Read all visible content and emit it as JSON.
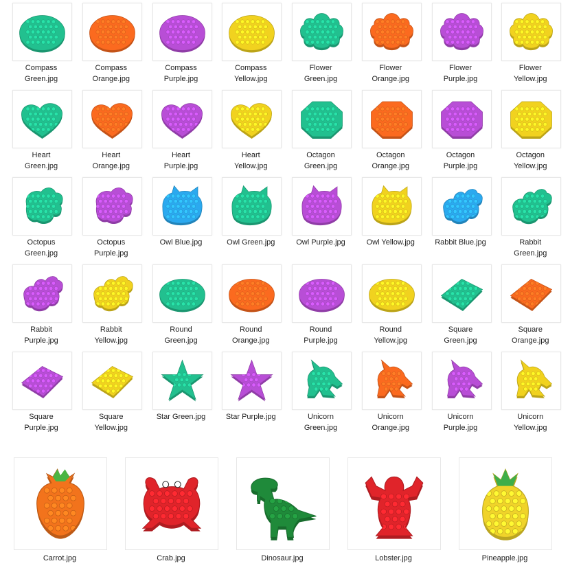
{
  "colors": {
    "Green": "#22c08f",
    "Orange": "#fb6a1f",
    "Purple": "#b84ed6",
    "Yellow": "#f1d21f",
    "Blue": "#2ba9ef",
    "Red": "#e0242a",
    "DarkGreen": "#1f8a3a",
    "CarrotOrange": "#f2731c",
    "PineappleYellow": "#f0d32a"
  },
  "thumbnails": [
    {
      "caption": "Compass\nGreen.jpg",
      "shape": "compass",
      "color": "Green"
    },
    {
      "caption": "Compass\nOrange.jpg",
      "shape": "compass",
      "color": "Orange"
    },
    {
      "caption": "Compass\nPurple.jpg",
      "shape": "compass",
      "color": "Purple"
    },
    {
      "caption": "Compass\nYellow.jpg",
      "shape": "compass",
      "color": "Yellow"
    },
    {
      "caption": "Flower\nGreen.jpg",
      "shape": "flower",
      "color": "Green"
    },
    {
      "caption": "Flower\nOrange.jpg",
      "shape": "flower",
      "color": "Orange"
    },
    {
      "caption": "Flower\nPurple.jpg",
      "shape": "flower",
      "color": "Purple"
    },
    {
      "caption": "Flower\nYellow.jpg",
      "shape": "flower",
      "color": "Yellow"
    },
    {
      "caption": "Heart\nGreen.jpg",
      "shape": "heart",
      "color": "Green"
    },
    {
      "caption": "Heart\nOrange.jpg",
      "shape": "heart",
      "color": "Orange"
    },
    {
      "caption": "Heart\nPurple.jpg",
      "shape": "heart",
      "color": "Purple"
    },
    {
      "caption": "Heart\nYellow.jpg",
      "shape": "heart",
      "color": "Yellow"
    },
    {
      "caption": "Octagon\nGreen.jpg",
      "shape": "octagon",
      "color": "Green"
    },
    {
      "caption": "Octagon\nOrange.jpg",
      "shape": "octagon",
      "color": "Orange"
    },
    {
      "caption": "Octagon\nPurple.jpg",
      "shape": "octagon",
      "color": "Purple"
    },
    {
      "caption": "Octagon\nYellow.jpg",
      "shape": "octagon",
      "color": "Yellow"
    },
    {
      "caption": "Octopus\nGreen.jpg",
      "shape": "octopus",
      "color": "Green"
    },
    {
      "caption": "Octopus\nPurple.jpg",
      "shape": "octopus",
      "color": "Purple"
    },
    {
      "caption": "Owl Blue.jpg",
      "shape": "owl",
      "color": "Blue"
    },
    {
      "caption": "Owl Green.jpg",
      "shape": "owl",
      "color": "Green"
    },
    {
      "caption": "Owl Purple.jpg",
      "shape": "owl",
      "color": "Purple"
    },
    {
      "caption": "Owl Yellow.jpg",
      "shape": "owl",
      "color": "Yellow"
    },
    {
      "caption": "Rabbit Blue.jpg",
      "shape": "rabbit",
      "color": "Blue"
    },
    {
      "caption": "Rabbit\nGreen.jpg",
      "shape": "rabbit",
      "color": "Green"
    },
    {
      "caption": "Rabbit\nPurple.jpg",
      "shape": "rabbit",
      "color": "Purple"
    },
    {
      "caption": "Rabbit\nYellow.jpg",
      "shape": "rabbit",
      "color": "Yellow"
    },
    {
      "caption": "Round\nGreen.jpg",
      "shape": "round",
      "color": "Green"
    },
    {
      "caption": "Round\nOrange.jpg",
      "shape": "round",
      "color": "Orange"
    },
    {
      "caption": "Round\nPurple.jpg",
      "shape": "round",
      "color": "Purple"
    },
    {
      "caption": "Round\nYellow.jpg",
      "shape": "round",
      "color": "Yellow"
    },
    {
      "caption": "Square\nGreen.jpg",
      "shape": "square",
      "color": "Green"
    },
    {
      "caption": "Square\nOrange.jpg",
      "shape": "square",
      "color": "Orange"
    },
    {
      "caption": "Square\nPurple.jpg",
      "shape": "square",
      "color": "Purple"
    },
    {
      "caption": "Square\nYellow.jpg",
      "shape": "square",
      "color": "Yellow"
    },
    {
      "caption": "Star Green.jpg",
      "shape": "star",
      "color": "Green"
    },
    {
      "caption": "Star Purple.jpg",
      "shape": "star",
      "color": "Purple"
    },
    {
      "caption": "Unicorn\nGreen.jpg",
      "shape": "unicorn",
      "color": "Green"
    },
    {
      "caption": "Unicorn\nOrange.jpg",
      "shape": "unicorn",
      "color": "Orange"
    },
    {
      "caption": "Unicorn\nPurple.jpg",
      "shape": "unicorn",
      "color": "Purple"
    },
    {
      "caption": "Unicorn\nYellow.jpg",
      "shape": "unicorn",
      "color": "Yellow"
    }
  ],
  "large_thumbnails": [
    {
      "caption": "Carrot.jpg",
      "shape": "carrot",
      "color": "CarrotOrange"
    },
    {
      "caption": "Crab.jpg",
      "shape": "crab",
      "color": "Red"
    },
    {
      "caption": "Dinosaur.jpg",
      "shape": "dinosaur",
      "color": "DarkGreen"
    },
    {
      "caption": "Lobster.jpg",
      "shape": "lobster",
      "color": "Red"
    },
    {
      "caption": "Pineapple.jpg",
      "shape": "pineapple",
      "color": "PineappleYellow"
    }
  ]
}
